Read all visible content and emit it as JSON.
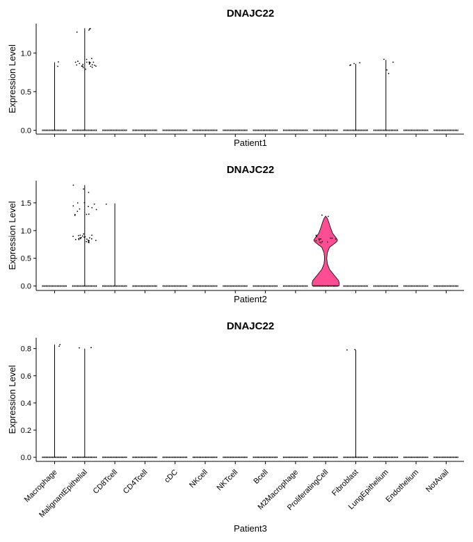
{
  "chart_data": [
    {
      "type": "violin",
      "title": "DNAJC22",
      "xlabel": "Patient1",
      "ylabel": "Expression Level",
      "categories": [
        "Macrophage",
        "MalignantEpithelial",
        "CD8Tcell",
        "CD4Tcell",
        "cDC",
        "NKcell",
        "NKTcell",
        "Bcell",
        "M2Macrophage",
        "ProliferatingCell",
        "Fibroblast",
        "LungEpithelium",
        "Endothelium",
        "NotAvail"
      ],
      "show_category_labels": false,
      "ylim": [
        -0.05,
        1.38
      ],
      "yticks": [
        0.0,
        0.5,
        1.0
      ],
      "ytick_labels": [
        "0.0",
        "0.5",
        "1.0"
      ],
      "max_values": [
        0.88,
        1.32,
        0,
        0,
        0,
        0,
        0,
        0,
        0,
        0,
        0.86,
        0.91,
        0,
        0
      ],
      "violin_width": [
        0,
        0,
        0,
        0,
        0,
        0,
        0,
        0,
        0,
        0,
        0,
        0,
        0,
        0
      ],
      "jitter_points": [
        {
          "category": "Macrophage",
          "values": [
            0.88,
            0.84
          ]
        },
        {
          "category": "MalignantEpithelial",
          "values": [
            1.3,
            1.28,
            1.32,
            1.31,
            0.92,
            0.91,
            0.9,
            0.89,
            0.88,
            0.87,
            0.86,
            0.85,
            0.85,
            0.84,
            0.84,
            0.83,
            0.83,
            0.82,
            0.82,
            0.81,
            0.8,
            0.86,
            0.87,
            0.88,
            0.85,
            0.83,
            0.84
          ]
        },
        {
          "category": "Fibroblast",
          "values": [
            0.85,
            0.83,
            0.86,
            0.84
          ]
        },
        {
          "category": "LungEpithelium",
          "values": [
            0.91,
            0.88,
            0.79,
            0.74
          ]
        }
      ]
    },
    {
      "type": "violin",
      "title": "DNAJC22",
      "xlabel": "Patient2",
      "ylabel": "Expression Level",
      "categories": [
        "Macrophage",
        "MalignantEpithelial",
        "CD8Tcell",
        "CD4Tcell",
        "cDC",
        "NKcell",
        "NKTcell",
        "Bcell",
        "M2Macrophage",
        "ProliferatingCell",
        "Fibroblast",
        "LungEpithelium",
        "Endothelium",
        "NotAvail"
      ],
      "show_category_labels": false,
      "ylim": [
        -0.08,
        1.9
      ],
      "yticks": [
        0.0,
        0.5,
        1.0,
        1.5
      ],
      "ytick_labels": [
        "0.0",
        "0.5",
        "1.0",
        "1.5"
      ],
      "max_values": [
        0,
        1.82,
        1.49,
        0,
        0,
        0,
        0,
        0,
        0,
        1.26,
        0,
        0,
        0,
        0
      ],
      "violin_width": [
        0,
        0,
        0,
        0,
        0,
        0,
        0,
        0,
        0,
        1,
        0,
        0,
        0,
        0
      ],
      "proliferating_violin_profile": [
        [
          0.0,
          0.95
        ],
        [
          0.05,
          0.98
        ],
        [
          0.1,
          0.92
        ],
        [
          0.2,
          0.6
        ],
        [
          0.3,
          0.28
        ],
        [
          0.4,
          0.12
        ],
        [
          0.5,
          0.08
        ],
        [
          0.6,
          0.12
        ],
        [
          0.7,
          0.28
        ],
        [
          0.75,
          0.55
        ],
        [
          0.8,
          0.8
        ],
        [
          0.83,
          0.85
        ],
        [
          0.87,
          0.75
        ],
        [
          0.95,
          0.5
        ],
        [
          1.05,
          0.35
        ],
        [
          1.15,
          0.22
        ],
        [
          1.22,
          0.12
        ],
        [
          1.26,
          0.0
        ]
      ],
      "jitter_points": [
        {
          "category": "MalignantEpithelial",
          "values": [
            1.82,
            1.75,
            1.68,
            1.52,
            1.5,
            1.48,
            1.45,
            1.43,
            1.42,
            1.4,
            1.38,
            1.35,
            1.31,
            1.3,
            1.29,
            1.28,
            0.95,
            0.93,
            0.92,
            0.9,
            0.89,
            0.88,
            0.87,
            0.86,
            0.85,
            0.84,
            0.83,
            0.82,
            0.81,
            0.8,
            0.79,
            0.78,
            0.86,
            0.87,
            0.85,
            0.84,
            0.83,
            0.9,
            0.91,
            0.88
          ]
        },
        {
          "category": "CD8Tcell",
          "values": [
            1.49
          ]
        },
        {
          "category": "ProliferatingCell",
          "values": [
            1.26,
            1.25,
            0.9,
            0.88,
            0.87,
            0.86,
            0.85,
            0.84,
            0.83,
            0.82,
            0.82,
            0.81,
            0.8,
            0.79,
            0.85
          ]
        }
      ]
    },
    {
      "type": "violin",
      "title": "DNAJC22",
      "xlabel": "Patient3",
      "ylabel": "Expression Level",
      "categories": [
        "Macrophage",
        "MalignantEpithelial",
        "CD8Tcell",
        "CD4Tcell",
        "cDC",
        "NKcell",
        "NKTcell",
        "Bcell",
        "M2Macrophage",
        "ProliferatingCell",
        "Fibroblast",
        "LungEpithelium",
        "Endothelium",
        "NotAvail"
      ],
      "show_category_labels": true,
      "ylim": [
        -0.03,
        0.88
      ],
      "yticks": [
        0.0,
        0.2,
        0.4,
        0.6,
        0.8
      ],
      "ytick_labels": [
        "0.0",
        "0.2",
        "0.4",
        "0.6",
        "0.8"
      ],
      "max_values": [
        0.83,
        0.8,
        0,
        0,
        0,
        0,
        0,
        0,
        0,
        0,
        0.79,
        0,
        0,
        0
      ],
      "violin_width": [
        0,
        0,
        0,
        0,
        0,
        0,
        0,
        0,
        0,
        0,
        0,
        0,
        0,
        0
      ],
      "jitter_points": [
        {
          "category": "Macrophage",
          "values": [
            0.83,
            0.82
          ]
        },
        {
          "category": "MalignantEpithelial",
          "values": [
            0.8,
            0.8
          ]
        },
        {
          "category": "Fibroblast",
          "values": [
            0.79,
            0.79
          ]
        }
      ]
    }
  ],
  "colors": {
    "violin_fill": "#FF4D94",
    "violin_stroke": "#000000",
    "points": "#000000",
    "axis": "#000000"
  }
}
